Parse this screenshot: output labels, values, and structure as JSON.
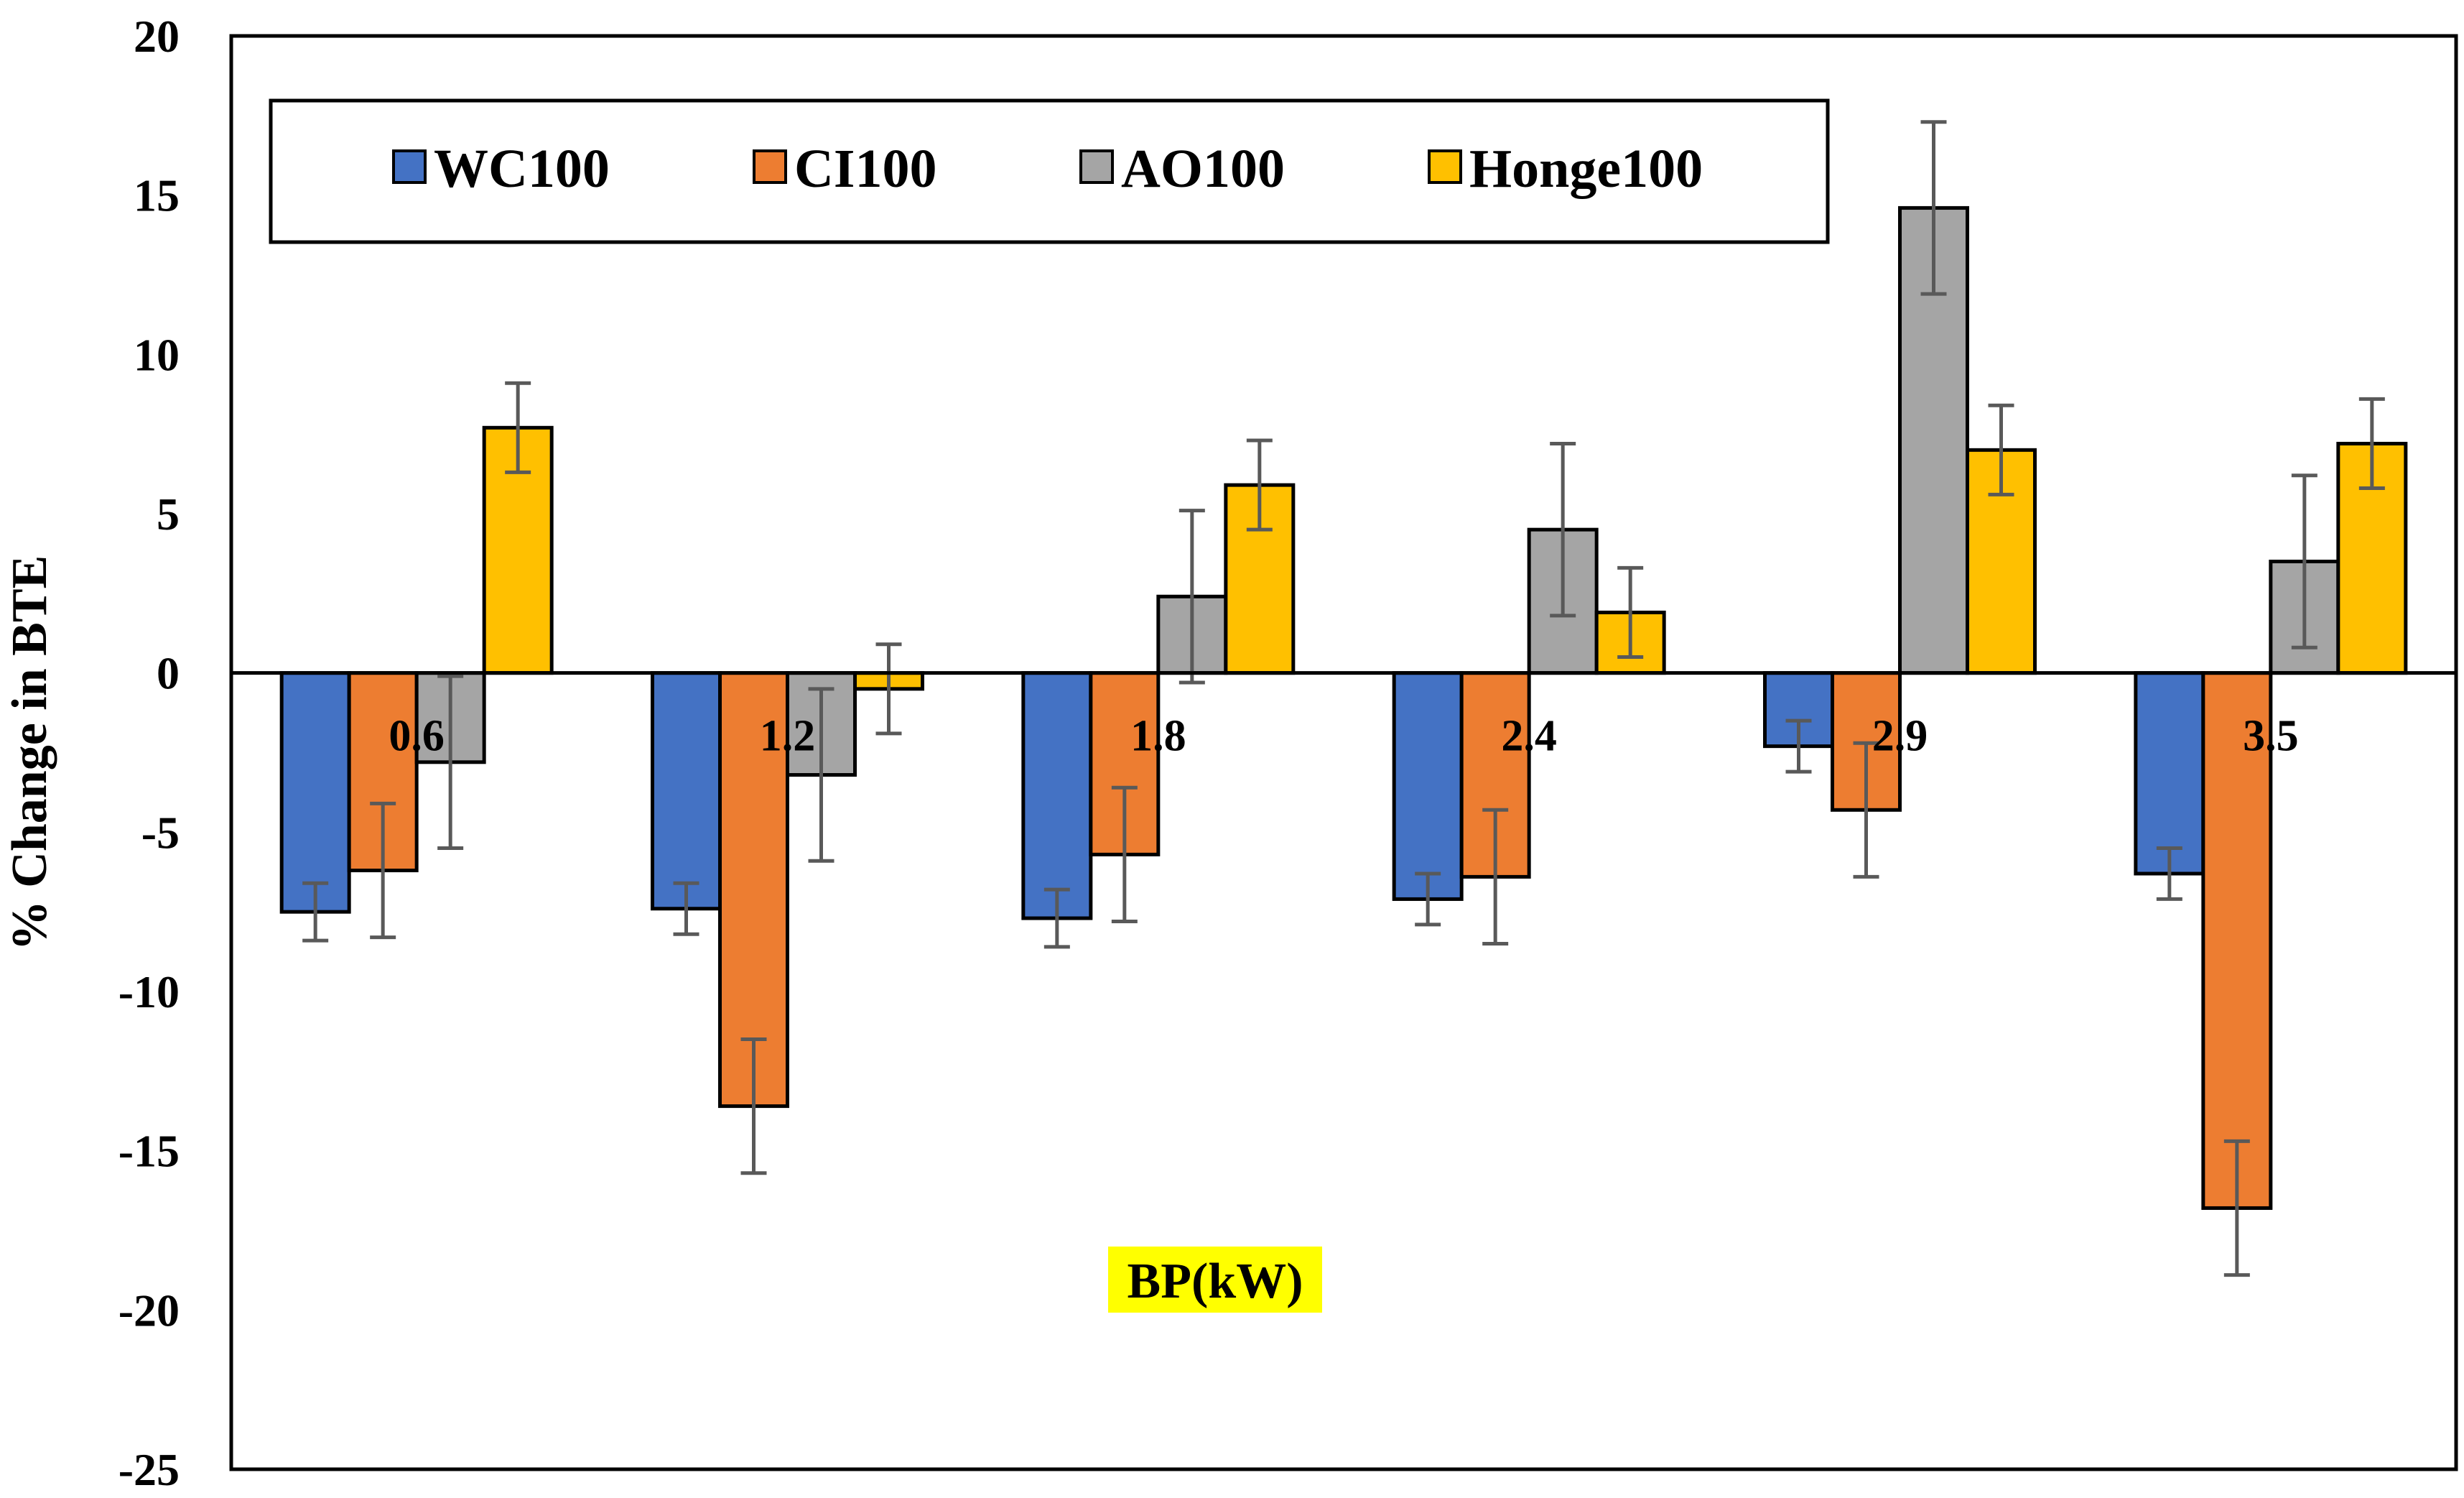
{
  "chart_data": {
    "type": "bar",
    "title": "",
    "xlabel": "BP(kW)",
    "ylabel": "% Change in BTE",
    "ylim": [
      -25,
      20
    ],
    "yticks": [
      20,
      15,
      10,
      5,
      0,
      -5,
      -10,
      -15,
      -20,
      -25
    ],
    "categories": [
      "0.6",
      "1.2",
      "1.8",
      "2.4",
      "2.9",
      "3.5"
    ],
    "legend_position": "top-left",
    "xlabel_highlight": "#ffff00",
    "series": [
      {
        "name": "WC100",
        "color": "#4472c4",
        "values": [
          -7.5,
          -7.4,
          -7.7,
          -7.1,
          -2.3,
          -6.3
        ],
        "errors": [
          0.9,
          0.8,
          0.9,
          0.8,
          0.8,
          0.8
        ]
      },
      {
        "name": "CI100",
        "color": "#ed7d31",
        "values": [
          -6.2,
          -13.6,
          -5.7,
          -6.4,
          -4.3,
          -16.8
        ],
        "errors": [
          2.1,
          2.1,
          2.1,
          2.1,
          2.1,
          2.1
        ]
      },
      {
        "name": "AO100",
        "color": "#a5a5a5",
        "values": [
          -2.8,
          -3.2,
          2.4,
          4.5,
          14.6,
          3.5
        ],
        "errors": [
          2.7,
          2.7,
          2.7,
          2.7,
          2.7,
          2.7
        ]
      },
      {
        "name": "Honge100",
        "color": "#ffc000",
        "values": [
          7.7,
          -0.5,
          5.9,
          1.9,
          7.0,
          7.2
        ],
        "errors": [
          1.4,
          1.4,
          1.4,
          1.4,
          1.4,
          1.4
        ]
      }
    ]
  }
}
